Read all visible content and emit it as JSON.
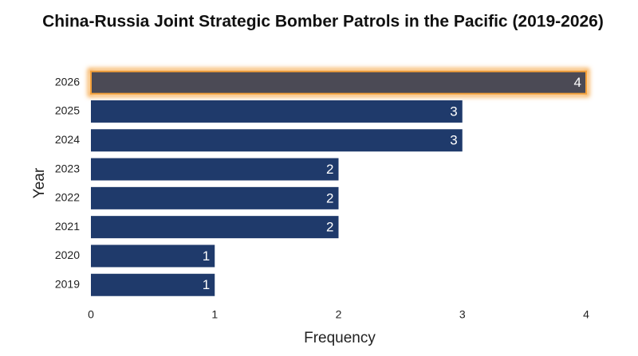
{
  "chart_data": {
    "type": "barh",
    "title": "China-Russia Joint Strategic Bomber Patrols in the Pacific (2019-2026)",
    "x_label": "Frequency",
    "y_label": "Year",
    "categories": [
      "2026",
      "2025",
      "2024",
      "2023",
      "2022",
      "2021",
      "2020",
      "2019"
    ],
    "values": [
      4,
      3,
      3,
      2,
      2,
      2,
      1,
      1
    ],
    "color": "#1f3a6b",
    "highlight": {
      "category": "2026",
      "color": "#4b4a55",
      "glow": "#f5a13a"
    },
    "xlim": [
      0,
      4
    ],
    "xticks": [
      0,
      1,
      2,
      3,
      4
    ],
    "grid": false
  }
}
